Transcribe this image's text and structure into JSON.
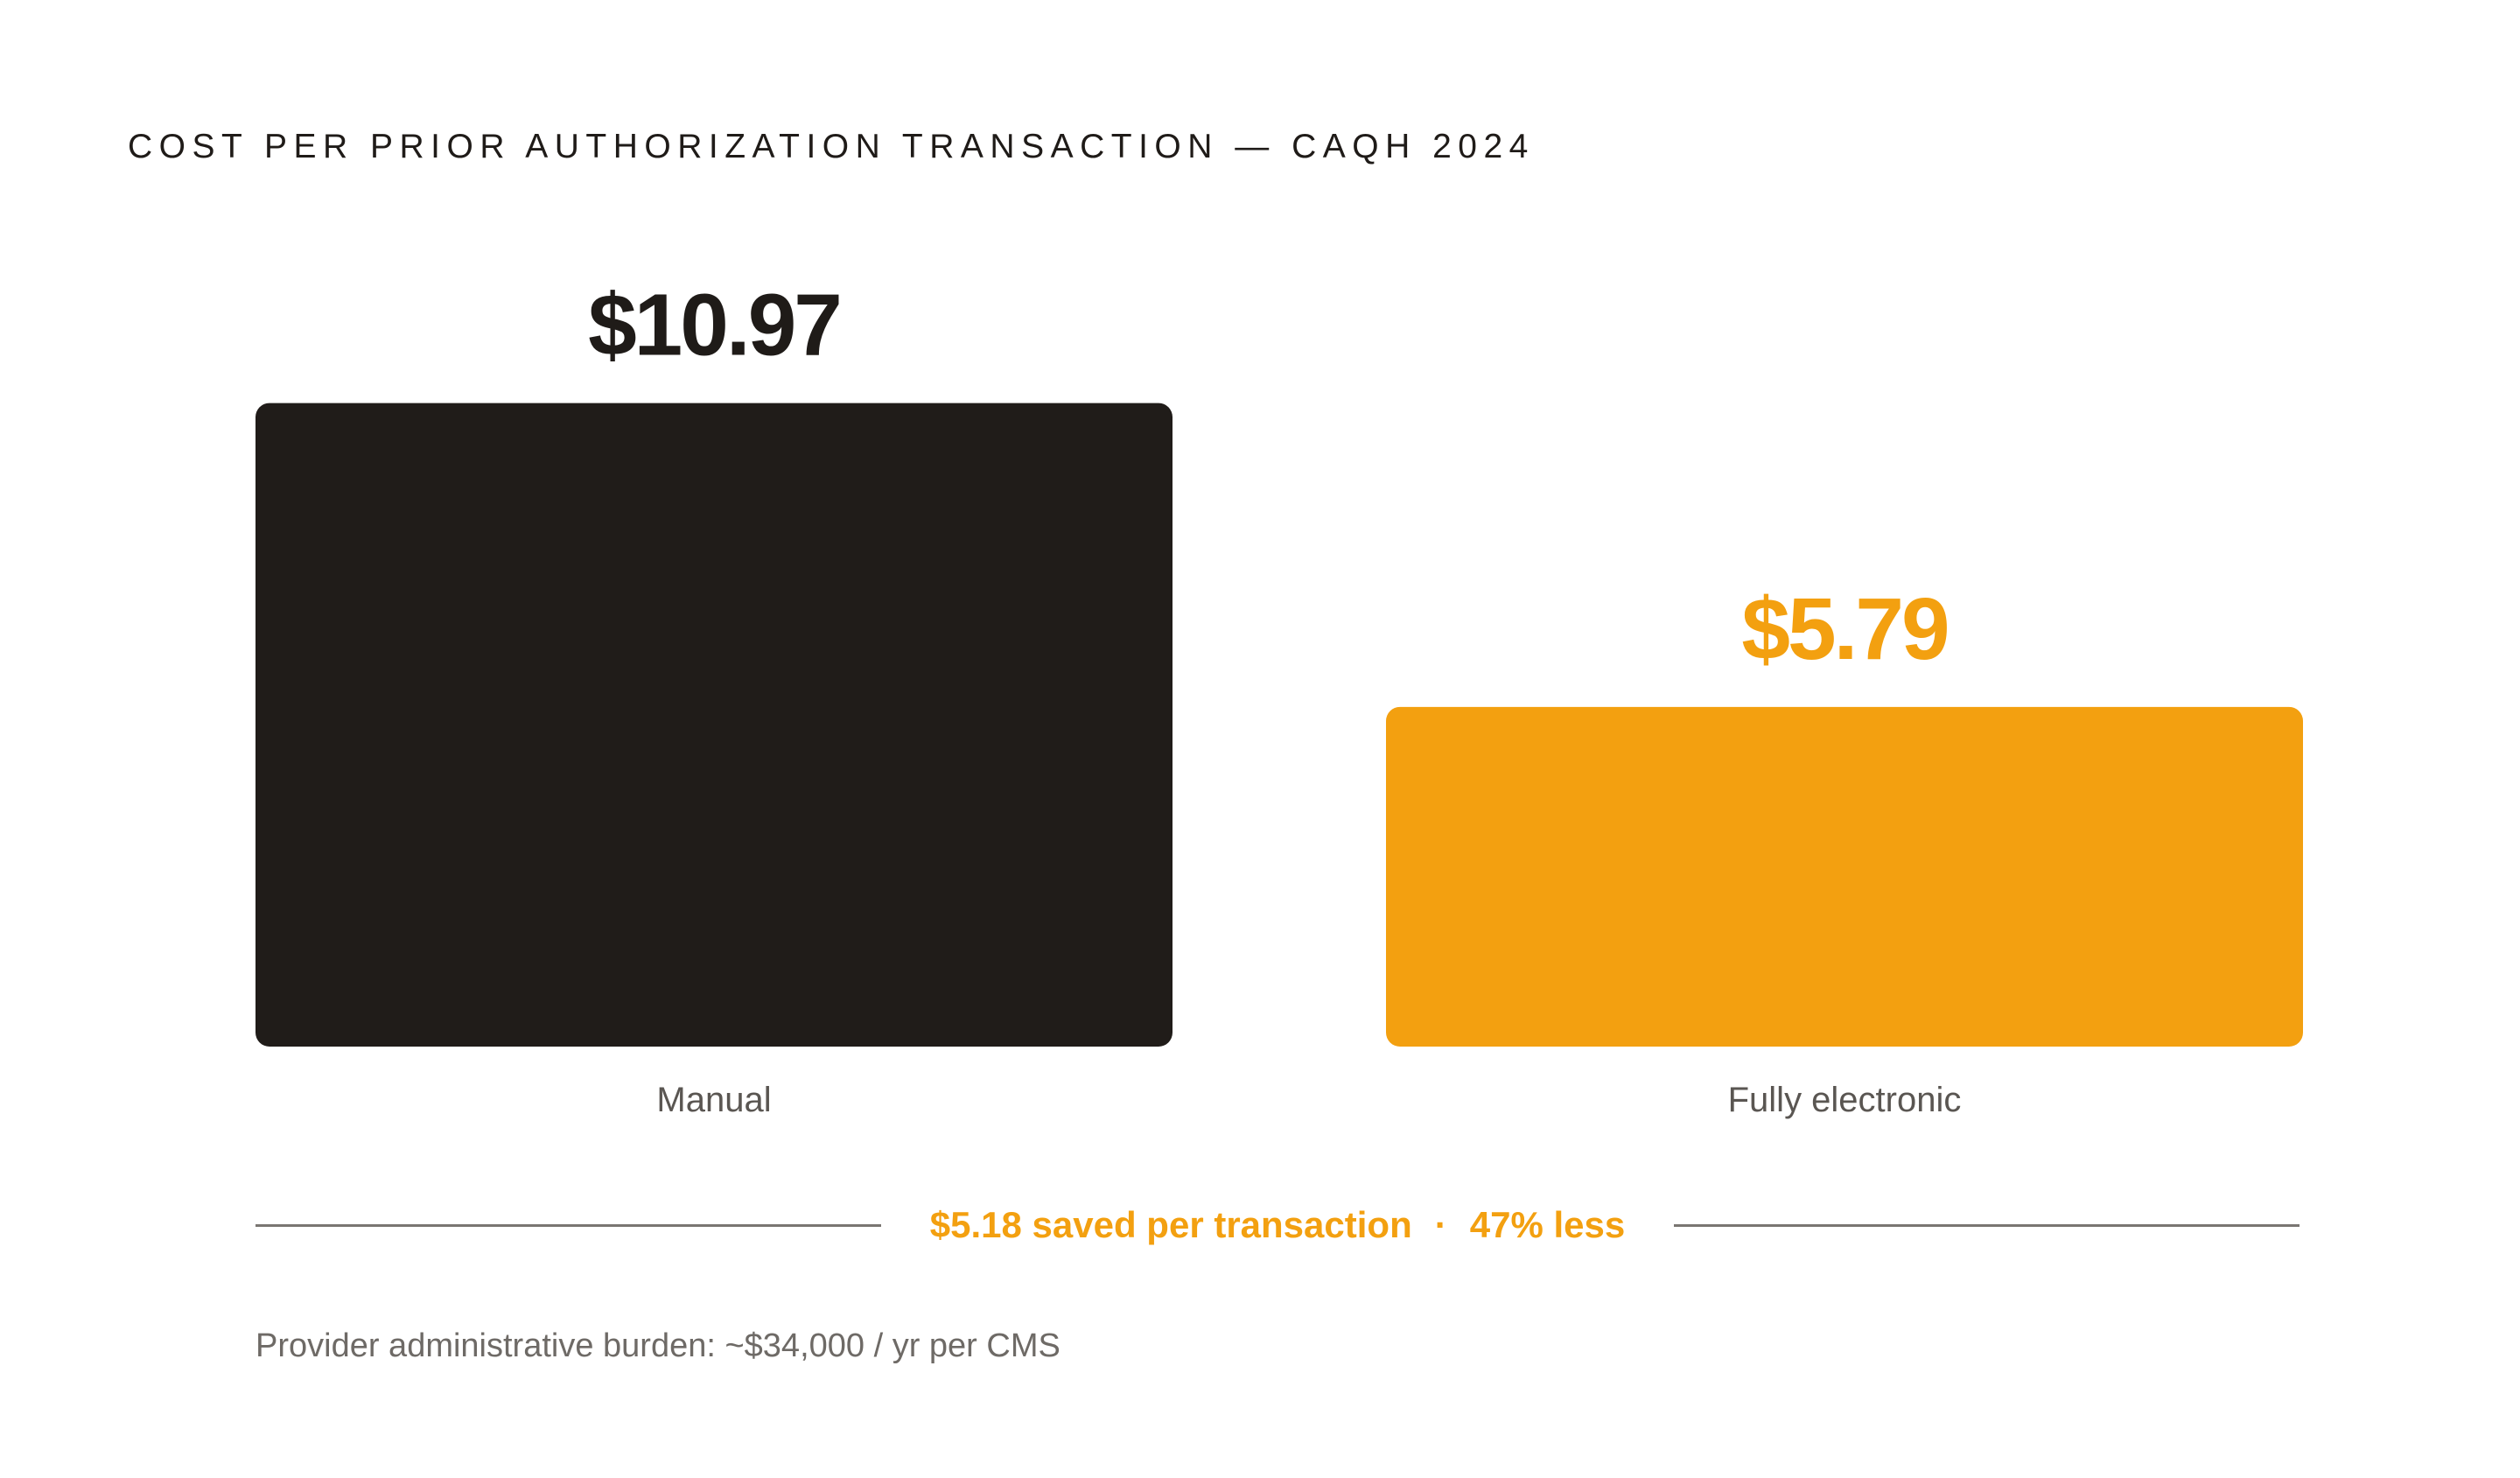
{
  "colors": {
    "manual": "#201c19",
    "electronic": "#f3a010",
    "accent_text": "#f3a010",
    "text_dark": "#1f1b18"
  },
  "chart_data": {
    "type": "bar",
    "title": "COST PER PRIOR AUTHORIZATION TRANSACTION — CAQH 2024",
    "categories": [
      "Manual",
      "Fully electronic"
    ],
    "values": [
      10.97,
      5.79
    ],
    "value_labels": [
      "$10.97",
      "$5.79"
    ],
    "ylim": [
      0,
      12.5
    ],
    "grid": false,
    "legend": "none"
  },
  "savings": {
    "amount_text": "$5.18 saved per transaction",
    "separator": "·",
    "percent_text": "47% less"
  },
  "footnote": "Provider administrative burden: ~$34,000 / yr per CMS"
}
